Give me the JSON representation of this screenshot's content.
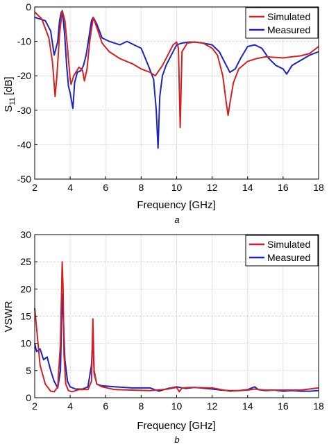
{
  "figure": {
    "panel_labels": [
      "a",
      "b"
    ]
  },
  "colors": {
    "simulated": "#d42020",
    "measured": "#1a22c0",
    "grid": "#cfcfcf",
    "axis": "#000000"
  },
  "chart_data": [
    {
      "type": "line",
      "panel": "a",
      "xlabel": "Frequency [GHz]",
      "ylabel": "S11 [dB]",
      "ylabel_main": "S",
      "ylabel_sub": "11",
      "ylabel_unit": "[dB]",
      "xlim": [
        2,
        18
      ],
      "ylim": [
        -50,
        0
      ],
      "xticks": [
        2,
        4,
        6,
        8,
        10,
        12,
        14,
        16,
        18
      ],
      "yticks": [
        -50,
        -40,
        -30,
        -20,
        -10,
        0
      ],
      "grid": true,
      "legend": "top-right",
      "series": [
        {
          "name": "Simulated",
          "color": "#d42020",
          "x": [
            2.0,
            2.4,
            2.8,
            3.0,
            3.15,
            3.25,
            3.4,
            3.55,
            3.7,
            3.85,
            4.0,
            4.05,
            4.2,
            4.5,
            4.7,
            4.8,
            4.95,
            5.1,
            5.3,
            5.5,
            5.8,
            6.2,
            6.8,
            7.5,
            8.0,
            8.5,
            8.8,
            9.2,
            9.6,
            9.8,
            10.0,
            10.1,
            10.2,
            10.3,
            10.6,
            11.0,
            11.5,
            12.0,
            12.3,
            12.6,
            12.8,
            12.9,
            13.0,
            13.2,
            13.5,
            14.0,
            14.5,
            15.0,
            16.0,
            17.0,
            17.5,
            18.0
          ],
          "y": [
            -1.5,
            -3.5,
            -9,
            -16,
            -26,
            -20,
            -8,
            -1,
            -4,
            -12,
            -21,
            -22.5,
            -20,
            -17.5,
            -18.5,
            -21.5,
            -18,
            -10,
            -3,
            -6,
            -10.5,
            -13,
            -15,
            -16.5,
            -18,
            -19,
            -20,
            -17,
            -13,
            -11,
            -10.2,
            -12,
            -35,
            -13,
            -10.5,
            -10.2,
            -10.5,
            -12,
            -14,
            -20,
            -28,
            -31.5,
            -28,
            -22,
            -18,
            -15.8,
            -15,
            -14.5,
            -14.8,
            -14.2,
            -13.5,
            -11.5
          ]
        },
        {
          "name": "Measured",
          "color": "#1a22c0",
          "x": [
            2.0,
            2.3,
            2.6,
            2.9,
            3.1,
            3.3,
            3.4,
            3.5,
            3.6,
            3.7,
            3.8,
            3.9,
            4.0,
            4.1,
            4.15,
            4.25,
            4.4,
            4.6,
            4.75,
            4.9,
            5.05,
            5.2,
            5.3,
            5.5,
            5.8,
            6.2,
            6.8,
            7.2,
            7.6,
            8.0,
            8.4,
            8.7,
            8.85,
            8.95,
            9.05,
            9.2,
            9.4,
            9.7,
            10.0,
            10.3,
            10.7,
            11.0,
            11.5,
            12.0,
            12.4,
            12.8,
            13.0,
            13.3,
            13.6,
            14.0,
            14.4,
            14.8,
            15.2,
            15.6,
            16.0,
            16.2,
            16.5,
            17.0,
            17.5,
            18.0
          ],
          "y": [
            -3,
            -3.5,
            -4,
            -7,
            -14,
            -10,
            -4,
            -1.5,
            -3,
            -9,
            -17,
            -23,
            -25,
            -28,
            -29.5,
            -22,
            -19,
            -18.5,
            -17,
            -14,
            -9,
            -4,
            -3,
            -5,
            -9,
            -10,
            -11,
            -10,
            -11,
            -12,
            -17,
            -21,
            -30,
            -41,
            -26,
            -20,
            -17,
            -14,
            -11,
            -10.5,
            -10.2,
            -10.2,
            -10.5,
            -11,
            -13,
            -17,
            -19,
            -18,
            -15,
            -11.5,
            -11,
            -12,
            -15,
            -17,
            -18,
            -19.5,
            -17,
            -15.5,
            -14,
            -13
          ]
        }
      ]
    },
    {
      "type": "line",
      "panel": "b",
      "xlabel": "Frequency [GHz]",
      "ylabel": "VSWR",
      "xlim": [
        2,
        18
      ],
      "ylim": [
        0,
        30
      ],
      "xticks": [
        2,
        4,
        6,
        8,
        10,
        12,
        14,
        16,
        18
      ],
      "yticks": [
        0,
        5,
        10,
        15,
        20,
        25,
        30
      ],
      "grid": true,
      "legend": "top-right",
      "series": [
        {
          "name": "Simulated",
          "color": "#d42020",
          "x": [
            2.0,
            2.1,
            2.3,
            2.6,
            2.9,
            3.1,
            3.3,
            3.45,
            3.55,
            3.6,
            3.65,
            3.75,
            3.9,
            4.1,
            4.5,
            5.0,
            5.2,
            5.28,
            5.35,
            5.5,
            5.8,
            6.5,
            7.5,
            8.5,
            9.5,
            10.0,
            10.15,
            10.3,
            10.8,
            12.0,
            13.0,
            14.0,
            14.4,
            15.0,
            16.0,
            17.0,
            18.0
          ],
          "y": [
            16.5,
            13,
            6,
            2.5,
            1.2,
            1.1,
            2,
            10,
            25,
            20,
            8,
            2.5,
            1.3,
            1.1,
            1.5,
            1.5,
            3,
            14.5,
            5,
            2.5,
            2,
            1.5,
            1.4,
            1.3,
            1.6,
            1.9,
            1.1,
            1.8,
            1.9,
            1.8,
            1.2,
            1.4,
            1.6,
            1.4,
            1.4,
            1.4,
            1.8
          ]
        },
        {
          "name": "Measured",
          "color": "#1a22c0",
          "x": [
            2.0,
            2.1,
            2.3,
            2.5,
            2.7,
            2.9,
            3.1,
            3.3,
            3.45,
            3.55,
            3.6,
            3.7,
            3.85,
            4.0,
            4.3,
            4.7,
            5.0,
            5.2,
            5.28,
            5.35,
            5.5,
            5.8,
            6.5,
            7.5,
            8.5,
            9.0,
            9.5,
            10.0,
            10.5,
            11.0,
            12.0,
            12.5,
            13.0,
            13.5,
            14.0,
            14.4,
            14.6,
            15.0,
            15.5,
            16.0,
            16.5,
            17.0,
            17.5,
            18.0
          ],
          "y": [
            10,
            8.5,
            9,
            7,
            7.5,
            5,
            3,
            1.8,
            5,
            19,
            16,
            7,
            3,
            2,
            1.6,
            1.6,
            2,
            6,
            11.5,
            4.5,
            2.5,
            2.2,
            2,
            1.8,
            1.8,
            1.2,
            1.7,
            2,
            1.7,
            1.9,
            1.6,
            1.4,
            1.3,
            1.3,
            1.5,
            2,
            1.5,
            1.3,
            1.4,
            1.2,
            1.3,
            1.2,
            1.2,
            1.3
          ]
        }
      ]
    }
  ]
}
